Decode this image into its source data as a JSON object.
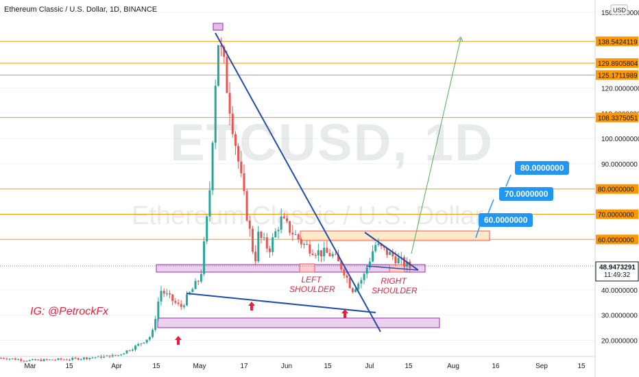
{
  "header": {
    "symbol_line": "Ethereum Classic / U.S. Dollar, 1D, BINANCE"
  },
  "watermark": {
    "symbol": "ETCUSD, 1D",
    "description": "Ethereum Classic / U.S. Dollar"
  },
  "axis": {
    "currency_badge": "USD",
    "price_labels": [
      "150.0000000",
      "120.0000000",
      "110.0000000",
      "100.0000000",
      "90.0000000",
      "40.0000000",
      "30.0000000",
      "20.0000000"
    ],
    "price_values": [
      150,
      120,
      110,
      100,
      90,
      40,
      30,
      20
    ],
    "time_labels": [
      "Mar",
      "15",
      "Apr",
      "15",
      "May",
      "17",
      "Jun",
      "15",
      "Jul",
      "15",
      "Aug",
      "16",
      "Sep",
      "15"
    ]
  },
  "levels": [
    {
      "label": "138.5424119",
      "value": 138.5424119
    },
    {
      "label": "129.8905804",
      "value": 129.8905804
    },
    {
      "label": "125.1711989",
      "value": 125.1711989
    },
    {
      "label": "108.3375051",
      "value": 108.3375051
    },
    {
      "label": "80.0000000",
      "value": 80
    },
    {
      "label": "70.0000000",
      "value": 70
    },
    {
      "label": "60.0000000",
      "value": 60
    }
  ],
  "current": {
    "price_label": "48.9473291",
    "countdown": "11:49:32",
    "value": 48.9473291
  },
  "callouts": [
    "80.0000000",
    "70.0000000",
    "60.0000000"
  ],
  "annotations": {
    "ig": "IG: @PetrockFx",
    "left_shoulder": "LEFT SHOULDER",
    "right_shoulder": "RIGHT SHOULDER"
  },
  "colors": {
    "up": "#26a69a",
    "down": "#ef5350",
    "level": "#ff9800",
    "trend": "#1e4ca8",
    "zone": "#9c27b0",
    "callout": "#2196f3",
    "projection": "#4caf50"
  },
  "chart_data": {
    "type": "candlestick",
    "title": "Ethereum Classic / U.S. Dollar, 1D, BINANCE",
    "ylim": [
      15,
      152
    ],
    "close_series": [
      [
        "2021-02-20",
        13
      ],
      [
        "2021-03-01",
        12
      ],
      [
        "2021-03-15",
        12.5
      ],
      [
        "2021-04-01",
        14
      ],
      [
        "2021-04-08",
        18
      ],
      [
        "2021-04-13",
        22
      ],
      [
        "2021-04-16",
        40
      ],
      [
        "2021-04-23",
        33
      ],
      [
        "2021-04-30",
        45
      ],
      [
        "2021-05-03",
        75
      ],
      [
        "2021-05-06",
        140
      ],
      [
        "2021-05-08",
        130
      ],
      [
        "2021-05-12",
        100
      ],
      [
        "2021-05-15",
        78
      ],
      [
        "2021-05-18",
        58
      ],
      [
        "2021-05-19",
        50
      ],
      [
        "2021-05-20",
        62
      ],
      [
        "2021-05-24",
        56
      ],
      [
        "2021-05-28",
        68
      ],
      [
        "2021-06-01",
        63
      ],
      [
        "2021-06-05",
        58
      ],
      [
        "2021-06-10",
        55
      ],
      [
        "2021-06-15",
        54
      ],
      [
        "2021-06-19",
        48
      ],
      [
        "2021-06-22",
        40
      ],
      [
        "2021-06-26",
        45
      ],
      [
        "2021-06-30",
        58
      ],
      [
        "2021-07-04",
        55
      ],
      [
        "2021-07-08",
        52
      ],
      [
        "2021-07-12",
        49
      ],
      [
        "2021-07-14",
        48.95
      ]
    ]
  }
}
